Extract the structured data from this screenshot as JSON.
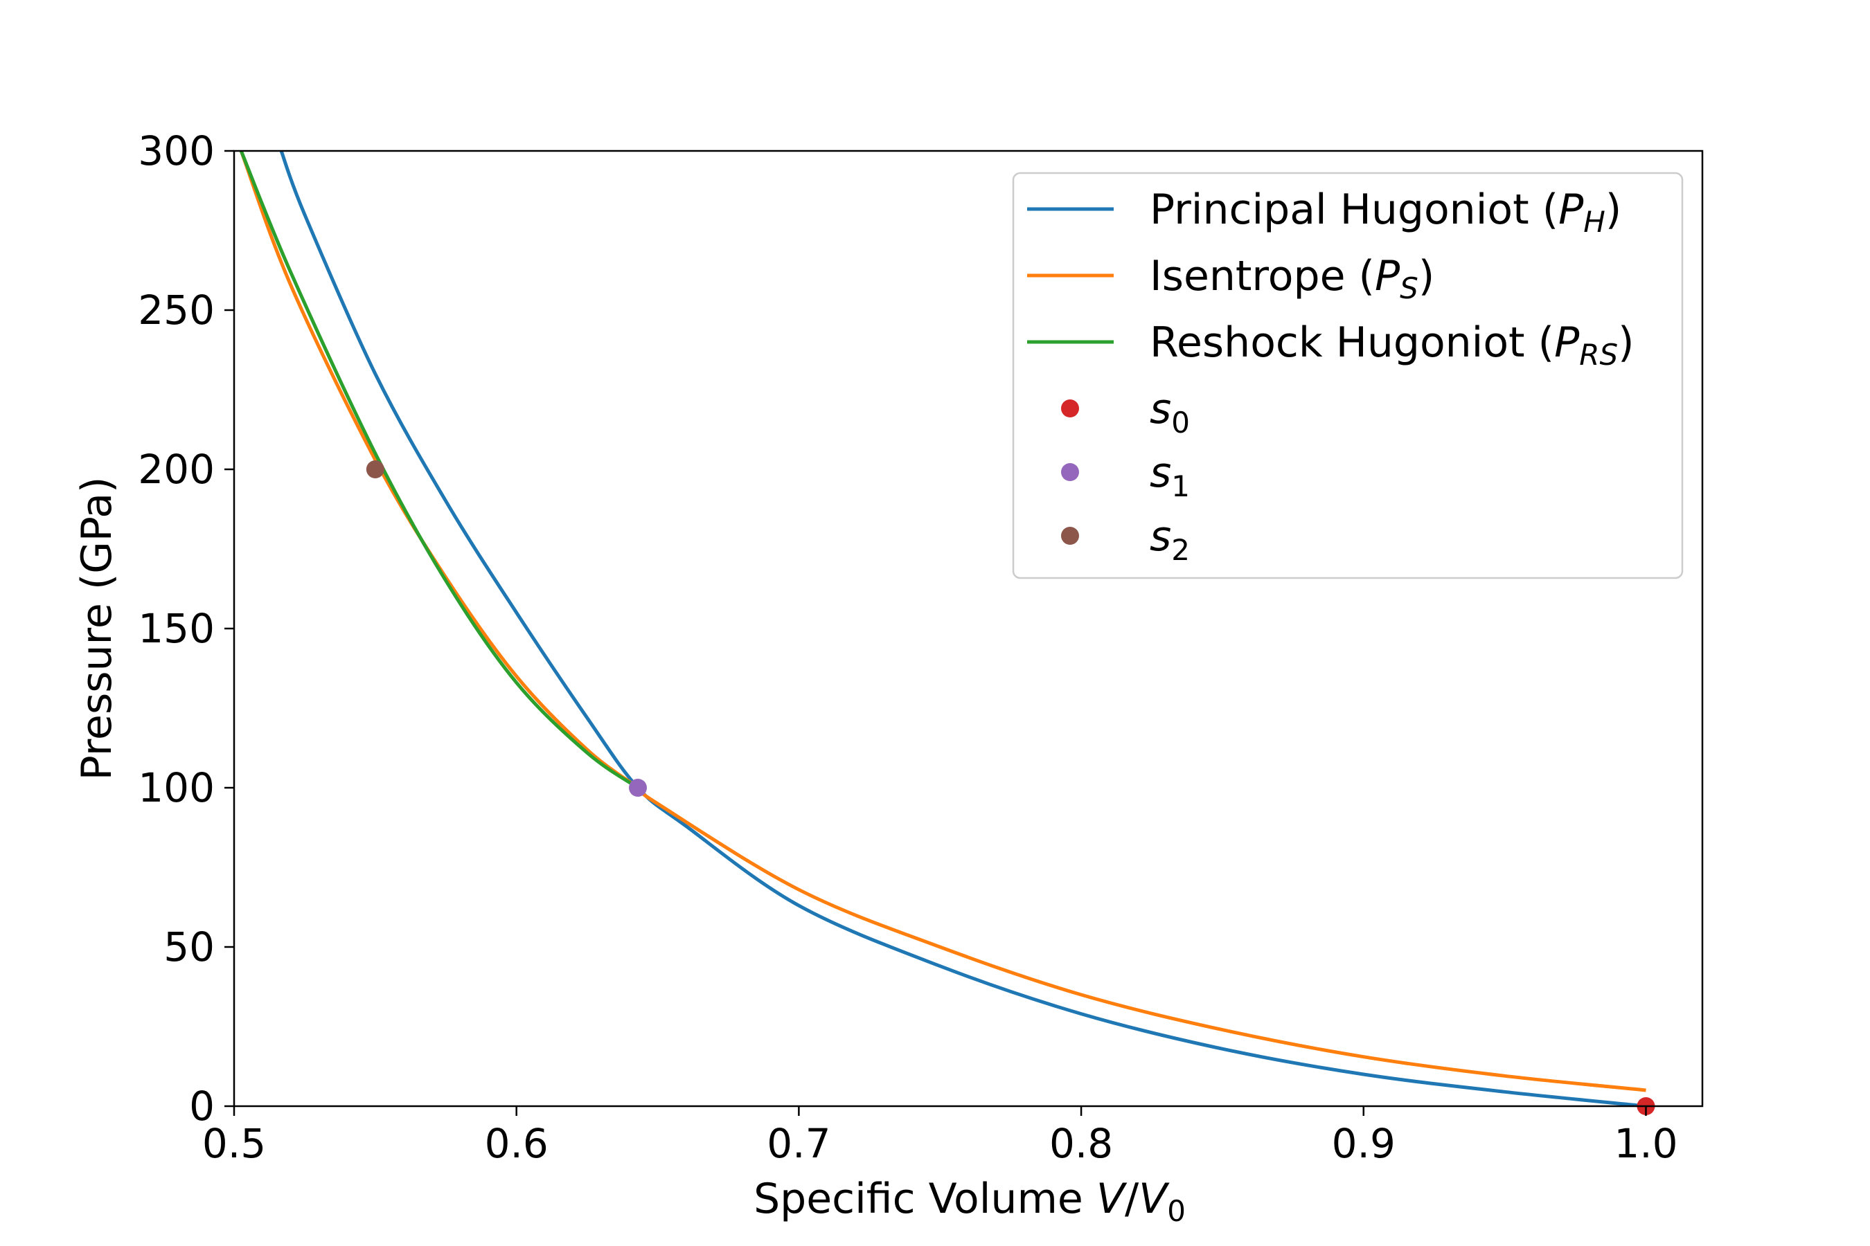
{
  "chart_data": {
    "type": "line",
    "xlabel": {
      "text": "Specific Volume ",
      "var": "V",
      "slash": "/",
      "var2": "V",
      "sub": "0"
    },
    "ylabel": "Pressure (GPa)",
    "xlim": [
      0.5,
      1.02
    ],
    "ylim": [
      0,
      300
    ],
    "x_ticks": [
      "0.5",
      "0.6",
      "0.7",
      "0.8",
      "0.9",
      "1.0"
    ],
    "x_tick_values": [
      0.5,
      0.6,
      0.7,
      0.8,
      0.9,
      1.0
    ],
    "y_ticks": [
      "0",
      "50",
      "100",
      "150",
      "200",
      "250",
      "300"
    ],
    "y_tick_values": [
      0,
      50,
      100,
      150,
      200,
      250,
      300
    ],
    "grid": false,
    "legend_position": "top-right",
    "series": [
      {
        "name": "Principal Hugoniot",
        "sym": "P",
        "sub": "H",
        "color": "#1f77b4",
        "points": [
          [
            0.5167,
            300
          ],
          [
            0.525,
            280
          ],
          [
            0.55,
            230
          ],
          [
            0.575,
            190
          ],
          [
            0.6,
            155
          ],
          [
            0.625,
            122
          ],
          [
            0.643,
            100
          ],
          [
            0.66,
            88
          ],
          [
            0.7,
            63
          ],
          [
            0.75,
            44
          ],
          [
            0.8,
            29
          ],
          [
            0.85,
            18
          ],
          [
            0.9,
            10
          ],
          [
            0.95,
            4.5
          ],
          [
            1.0,
            0
          ]
        ]
      },
      {
        "name": "Isentrope",
        "sym": "P",
        "sub": "S",
        "color": "#ff7f0e",
        "points": [
          [
            0.5025,
            300
          ],
          [
            0.52,
            258
          ],
          [
            0.55,
            203
          ],
          [
            0.575,
            166
          ],
          [
            0.6,
            135
          ],
          [
            0.625,
            112
          ],
          [
            0.643,
            100
          ],
          [
            0.65,
            95
          ],
          [
            0.7,
            68
          ],
          [
            0.75,
            50
          ],
          [
            0.8,
            35
          ],
          [
            0.85,
            24
          ],
          [
            0.9,
            15.5
          ],
          [
            0.95,
            9.5
          ],
          [
            1.0,
            5
          ]
        ]
      },
      {
        "name": "Reshock Hugoniot",
        "sym": "P",
        "sub": "RS",
        "color": "#2ca02c",
        "points": [
          [
            0.5025,
            300
          ],
          [
            0.52,
            262
          ],
          [
            0.55,
            205
          ],
          [
            0.575,
            165
          ],
          [
            0.6,
            133
          ],
          [
            0.625,
            111
          ],
          [
            0.643,
            100
          ]
        ]
      }
    ],
    "markers": [
      {
        "name": "s",
        "sub": "0",
        "x": 1.0,
        "y": 0,
        "color": "#d62728"
      },
      {
        "name": "s",
        "sub": "1",
        "x": 0.643,
        "y": 100,
        "color": "#9467bd"
      },
      {
        "name": "s",
        "sub": "2",
        "x": 0.55,
        "y": 200,
        "color": "#8c564b"
      }
    ]
  }
}
